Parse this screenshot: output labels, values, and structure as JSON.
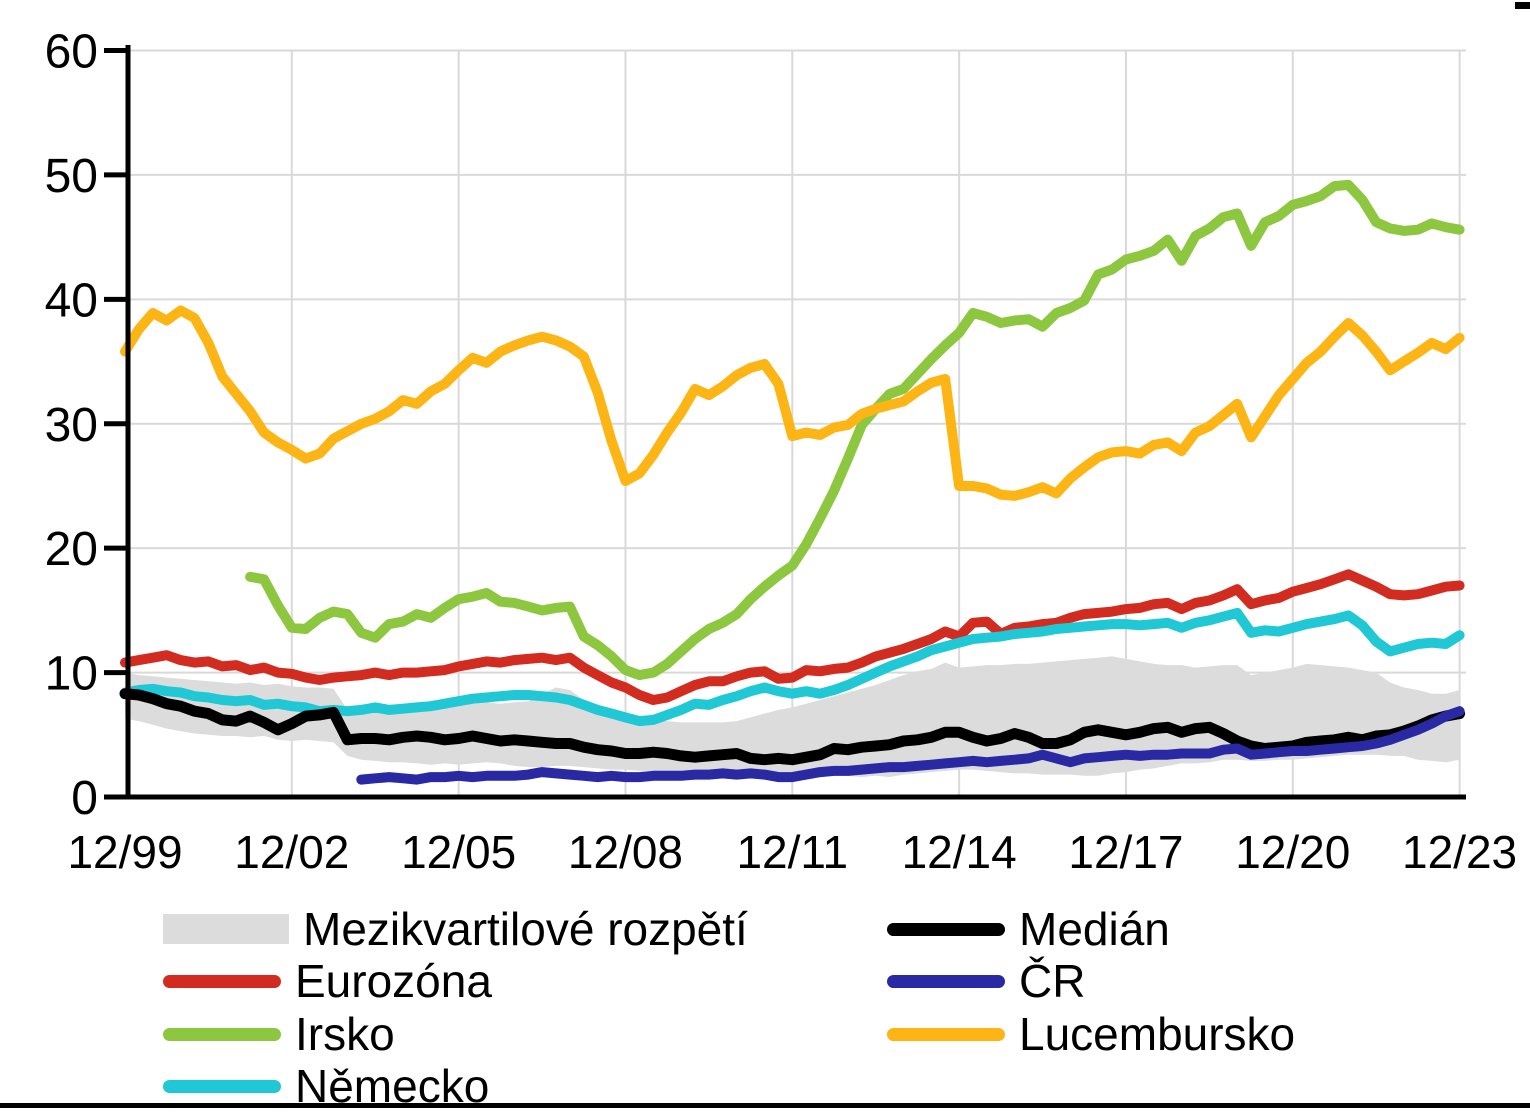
{
  "chart_data": {
    "type": "line",
    "title": "",
    "xlabel": "",
    "ylabel": "",
    "x_frequency": "quarterly",
    "n_points": 97,
    "x_range": [
      "12/99",
      "12/23"
    ],
    "ylim": [
      0,
      60
    ],
    "y_ticks": [
      0,
      10,
      20,
      30,
      40,
      50,
      60
    ],
    "y_tick_labels": [
      "0",
      "10",
      "20",
      "30",
      "40",
      "50",
      "60"
    ],
    "x_tick_indices": [
      0,
      12,
      24,
      36,
      48,
      60,
      72,
      84,
      96
    ],
    "x_tick_labels": [
      "12/99",
      "12/02",
      "12/05",
      "12/08",
      "12/11",
      "12/14",
      "12/17",
      "12/20",
      "12/23"
    ],
    "grid": true,
    "grid_color": "#d9d9d9",
    "axis_color": "#000000",
    "band": {
      "name": "Mezikvartilové rozpětí",
      "color": "#dcdcdc",
      "lower": [
        6.3,
        6.1,
        5.8,
        5.5,
        5.3,
        5.1,
        5.0,
        4.9,
        4.9,
        4.8,
        4.9,
        4.6,
        4.5,
        4.6,
        4.5,
        4.4,
        3.3,
        3.0,
        2.9,
        2.8,
        2.8,
        2.7,
        2.6,
        2.7,
        2.6,
        2.7,
        2.8,
        2.7,
        2.5,
        2.4,
        2.4,
        2.5,
        2.5,
        2.4,
        2.3,
        2.2,
        2.2,
        2.1,
        2.1,
        2.0,
        2.0,
        2.1,
        2.2,
        2.1,
        2.0,
        1.9,
        1.8,
        1.8,
        1.8,
        1.7,
        1.6,
        1.7,
        1.7,
        1.6,
        1.7,
        1.6,
        1.8,
        1.9,
        2.0,
        2.1,
        2.2,
        2.2,
        2.1,
        2.0,
        1.9,
        1.9,
        1.8,
        1.8,
        1.8,
        1.7,
        1.7,
        1.9,
        2.0,
        2.2,
        2.3,
        2.5,
        2.7,
        2.7,
        2.8,
        3.0,
        3.0,
        2.9,
        2.9,
        3.0,
        3.0,
        3.1,
        3.2,
        3.3,
        3.4,
        3.4,
        3.4,
        3.3,
        3.3,
        3.0,
        2.9,
        2.8,
        3.0
      ],
      "upper": [
        10.0,
        9.8,
        9.7,
        9.6,
        9.5,
        9.4,
        9.3,
        9.2,
        9.1,
        9.2,
        9.0,
        9.1,
        8.9,
        8.8,
        8.8,
        8.7,
        7.0,
        7.0,
        7.1,
        7.2,
        7.2,
        7.3,
        7.3,
        7.4,
        7.5,
        7.6,
        7.6,
        7.5,
        7.6,
        7.7,
        8.3,
        8.8,
        8.6,
        7.8,
        7.2,
        6.8,
        6.5,
        6.3,
        6.2,
        6.1,
        6.0,
        6.0,
        6.0,
        6.0,
        6.1,
        6.4,
        6.7,
        7.0,
        7.2,
        7.5,
        7.8,
        8.1,
        8.4,
        8.7,
        9.0,
        9.4,
        9.8,
        10.1,
        10.3,
        10.8,
        10.4,
        10.5,
        10.6,
        10.6,
        10.7,
        10.7,
        10.8,
        10.9,
        11.0,
        11.1,
        11.2,
        11.3,
        11.1,
        10.9,
        10.7,
        10.6,
        10.6,
        10.4,
        10.5,
        10.6,
        10.6,
        9.8,
        10.0,
        10.2,
        10.4,
        10.7,
        10.6,
        10.5,
        10.4,
        10.2,
        10.0,
        9.2,
        8.8,
        8.6,
        8.3,
        8.3,
        8.6
      ]
    },
    "series": [
      {
        "name": "Medián",
        "color": "#000000",
        "width": 11,
        "values": [
          8.3,
          8.2,
          7.9,
          7.5,
          7.3,
          6.9,
          6.7,
          6.2,
          6.1,
          6.5,
          6.0,
          5.4,
          5.9,
          6.5,
          6.6,
          6.8,
          4.6,
          4.7,
          4.7,
          4.6,
          4.8,
          4.9,
          4.8,
          4.6,
          4.7,
          4.9,
          4.7,
          4.5,
          4.6,
          4.5,
          4.4,
          4.3,
          4.3,
          4.0,
          3.8,
          3.7,
          3.5,
          3.5,
          3.6,
          3.5,
          3.3,
          3.2,
          3.3,
          3.4,
          3.5,
          3.1,
          3.0,
          3.1,
          3.0,
          3.2,
          3.4,
          3.9,
          3.8,
          4.0,
          4.1,
          4.2,
          4.5,
          4.6,
          4.8,
          5.2,
          5.2,
          4.8,
          4.5,
          4.7,
          5.1,
          4.8,
          4.3,
          4.3,
          4.6,
          5.2,
          5.4,
          5.2,
          5.0,
          5.2,
          5.5,
          5.6,
          5.2,
          5.5,
          5.6,
          5.1,
          4.5,
          4.1,
          3.9,
          4.0,
          4.1,
          4.4,
          4.5,
          4.6,
          4.8,
          4.6,
          4.9,
          5.0,
          5.3,
          5.7,
          6.2,
          6.5,
          6.7
        ]
      },
      {
        "name": "Eurozóna",
        "color": "#d22b20",
        "width": 10,
        "values": [
          10.8,
          11.0,
          11.2,
          11.4,
          11.0,
          10.8,
          10.9,
          10.5,
          10.6,
          10.2,
          10.4,
          10.0,
          9.9,
          9.6,
          9.4,
          9.6,
          9.7,
          9.8,
          10.0,
          9.8,
          10.0,
          10.0,
          10.1,
          10.2,
          10.5,
          10.7,
          10.9,
          10.8,
          11.0,
          11.1,
          11.2,
          11.0,
          11.2,
          10.4,
          9.8,
          9.2,
          8.8,
          8.2,
          7.8,
          8.0,
          8.5,
          9.0,
          9.3,
          9.3,
          9.7,
          10.0,
          10.1,
          9.5,
          9.6,
          10.2,
          10.1,
          10.3,
          10.4,
          10.8,
          11.3,
          11.6,
          11.9,
          12.3,
          12.7,
          13.3,
          12.9,
          14.0,
          14.1,
          13.1,
          13.6,
          13.7,
          13.9,
          14.0,
          14.4,
          14.7,
          14.8,
          14.9,
          15.1,
          15.2,
          15.5,
          15.6,
          15.1,
          15.6,
          15.8,
          16.2,
          16.7,
          15.5,
          15.8,
          16.0,
          16.5,
          16.8,
          17.1,
          17.5,
          17.9,
          17.4,
          16.9,
          16.3,
          16.2,
          16.3,
          16.6,
          16.9,
          17.0
        ]
      },
      {
        "name": "ČR",
        "color": "#2929a3",
        "width": 10,
        "values": [
          null,
          null,
          null,
          null,
          null,
          null,
          null,
          null,
          null,
          null,
          null,
          null,
          null,
          null,
          null,
          null,
          null,
          1.4,
          1.5,
          1.6,
          1.5,
          1.4,
          1.6,
          1.6,
          1.7,
          1.6,
          1.7,
          1.7,
          1.7,
          1.8,
          2.0,
          1.9,
          1.8,
          1.7,
          1.6,
          1.7,
          1.6,
          1.6,
          1.7,
          1.7,
          1.7,
          1.8,
          1.8,
          1.9,
          1.8,
          1.9,
          1.8,
          1.6,
          1.6,
          1.8,
          2.0,
          2.1,
          2.1,
          2.2,
          2.3,
          2.4,
          2.4,
          2.5,
          2.6,
          2.7,
          2.8,
          2.9,
          2.8,
          2.9,
          3.0,
          3.1,
          3.4,
          3.1,
          2.8,
          3.1,
          3.2,
          3.3,
          3.4,
          3.3,
          3.4,
          3.4,
          3.5,
          3.5,
          3.5,
          3.8,
          3.9,
          3.4,
          3.5,
          3.6,
          3.7,
          3.7,
          3.8,
          3.9,
          4.0,
          4.1,
          4.3,
          4.6,
          5.0,
          5.4,
          5.9,
          6.5,
          6.9
        ]
      },
      {
        "name": "Irsko",
        "color": "#8dc73f",
        "width": 10,
        "values": [
          null,
          null,
          null,
          null,
          null,
          null,
          null,
          null,
          null,
          17.7,
          17.5,
          15.4,
          13.6,
          13.5,
          14.4,
          14.9,
          14.7,
          13.2,
          12.8,
          13.9,
          14.1,
          14.7,
          14.4,
          15.2,
          15.9,
          16.1,
          16.4,
          15.7,
          15.6,
          15.3,
          15.0,
          15.2,
          15.3,
          12.9,
          12.2,
          11.3,
          10.2,
          9.8,
          10.0,
          10.7,
          11.7,
          12.7,
          13.5,
          14.0,
          14.7,
          15.9,
          16.9,
          17.8,
          18.6,
          20.3,
          22.4,
          24.6,
          27.2,
          29.9,
          31.2,
          32.4,
          32.8,
          34.0,
          35.2,
          36.3,
          37.3,
          38.9,
          38.6,
          38.1,
          38.3,
          38.4,
          37.8,
          38.9,
          39.3,
          39.9,
          42.0,
          42.4,
          43.2,
          43.5,
          43.9,
          44.8,
          43.1,
          45.1,
          45.7,
          46.6,
          46.9,
          44.3,
          46.2,
          46.7,
          47.6,
          47.9,
          48.3,
          49.1,
          49.2,
          48.0,
          46.2,
          45.7,
          45.5,
          45.6,
          46.1,
          45.8,
          45.6
        ]
      },
      {
        "name": "Lucembursko",
        "color": "#fdb515",
        "width": 10,
        "values": [
          35.8,
          37.6,
          38.9,
          38.3,
          39.1,
          38.5,
          36.5,
          33.8,
          32.4,
          31.0,
          29.3,
          28.5,
          27.9,
          27.2,
          27.6,
          28.8,
          29.4,
          30.0,
          30.4,
          31.0,
          31.9,
          31.6,
          32.6,
          33.2,
          34.3,
          35.3,
          34.9,
          35.8,
          36.3,
          36.7,
          37.0,
          36.7,
          36.2,
          35.4,
          32.5,
          28.6,
          25.4,
          26.0,
          27.5,
          29.3,
          30.9,
          32.8,
          32.3,
          33.0,
          33.9,
          34.5,
          34.8,
          33.2,
          29.0,
          29.3,
          29.1,
          29.7,
          29.9,
          30.8,
          31.2,
          31.5,
          31.8,
          32.6,
          33.3,
          33.6,
          25.0,
          25.0,
          24.8,
          24.3,
          24.2,
          24.5,
          24.9,
          24.4,
          25.6,
          26.5,
          27.3,
          27.7,
          27.8,
          27.6,
          28.3,
          28.5,
          27.8,
          29.3,
          29.8,
          30.7,
          31.6,
          28.9,
          30.6,
          32.3,
          33.6,
          34.9,
          35.8,
          37.0,
          38.1,
          37.1,
          35.8,
          34.3,
          35.0,
          35.7,
          36.5,
          36.0,
          36.9
        ]
      },
      {
        "name": "Německo",
        "color": "#1fc8d4",
        "width": 10,
        "values": [
          8.4,
          8.6,
          8.7,
          8.5,
          8.4,
          8.1,
          8.0,
          7.8,
          7.7,
          7.8,
          7.4,
          7.5,
          7.3,
          7.2,
          6.9,
          7.0,
          6.9,
          7.0,
          7.2,
          7.0,
          7.1,
          7.2,
          7.3,
          7.5,
          7.7,
          7.9,
          8.0,
          8.1,
          8.2,
          8.2,
          8.1,
          8.0,
          7.8,
          7.4,
          7.0,
          6.7,
          6.4,
          6.1,
          6.2,
          6.6,
          7.0,
          7.5,
          7.4,
          7.8,
          8.1,
          8.5,
          8.8,
          8.5,
          8.3,
          8.5,
          8.3,
          8.6,
          9.0,
          9.5,
          10.0,
          10.5,
          10.9,
          11.3,
          11.8,
          12.1,
          12.4,
          12.7,
          12.8,
          12.9,
          13.1,
          13.2,
          13.3,
          13.5,
          13.6,
          13.7,
          13.8,
          13.9,
          13.9,
          13.8,
          13.9,
          14.0,
          13.6,
          14.0,
          14.2,
          14.5,
          14.8,
          13.2,
          13.4,
          13.3,
          13.6,
          13.9,
          14.1,
          14.3,
          14.6,
          13.8,
          12.5,
          11.7,
          12.0,
          12.3,
          12.4,
          12.3,
          13.0
        ]
      }
    ],
    "draw_order": [
      "band",
      "Irsko",
      "Lucembursko",
      "Eurozóna",
      "Německo",
      "Medián",
      "ČR"
    ],
    "legend": {
      "position": "bottom",
      "left": [
        {
          "label": "Mezikvartilové rozpětí",
          "swatch": "band",
          "color": "#dcdcdc"
        },
        {
          "label": "Eurozóna",
          "swatch": "line",
          "color": "#d22b20"
        },
        {
          "label": "Irsko",
          "swatch": "line",
          "color": "#8dc73f"
        },
        {
          "label": "Německo",
          "swatch": "line",
          "color": "#1fc8d4"
        }
      ],
      "right": [
        {
          "label": "Medián",
          "swatch": "line",
          "color": "#000000"
        },
        {
          "label": "ČR",
          "swatch": "line",
          "color": "#2929a3"
        },
        {
          "label": "Lucembursko",
          "swatch": "line",
          "color": "#fdb515"
        }
      ]
    }
  }
}
